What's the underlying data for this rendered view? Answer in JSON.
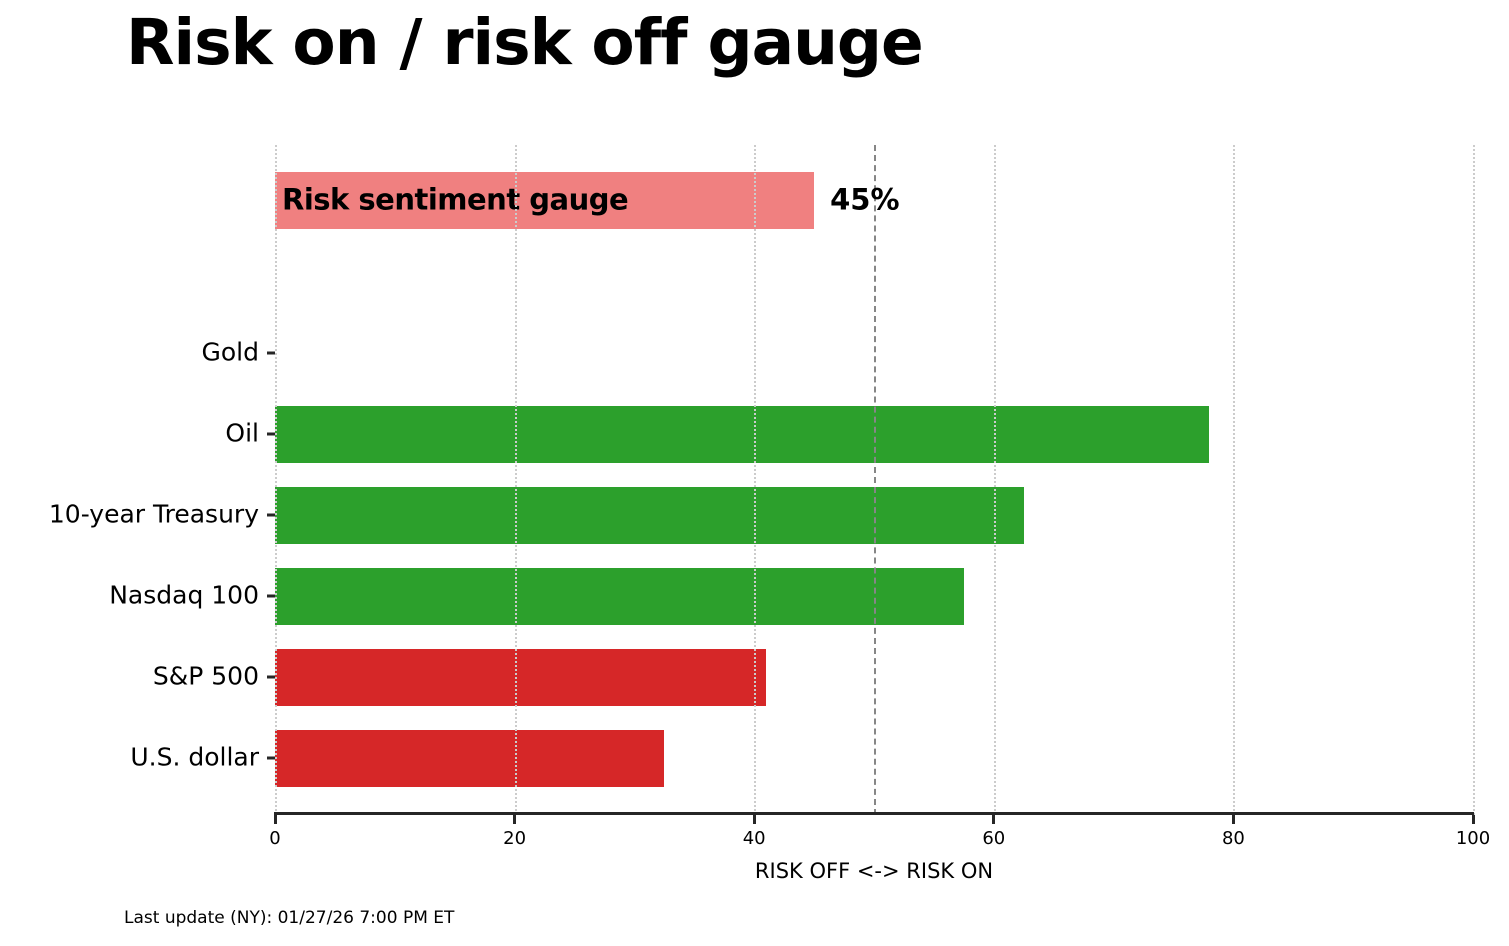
{
  "title": "Risk on / risk off gauge",
  "footer": "Last update (NY): 01/27/26 7:00 PM ET",
  "colors": {
    "risk_on_green": "#2ca02c",
    "risk_off_red": "#d62728",
    "gauge_pink": "#f08080",
    "threshold_gray": "#868686",
    "grid_gray": "#cccccc",
    "axis_dark": "#262626"
  },
  "chart_data": {
    "type": "bar",
    "orientation": "horizontal",
    "title": "Risk on / risk off gauge",
    "xlabel": "RISK OFF <-> RISK ON",
    "xlim": [
      0,
      100
    ],
    "xticks": [
      0,
      20,
      40,
      60,
      80,
      100
    ],
    "grid": "vertical-dotted",
    "legend": "none",
    "threshold_line_x": 50,
    "gauge": {
      "label": "Risk sentiment gauge",
      "value": 45,
      "value_label": "45%",
      "color": "#f08080"
    },
    "categories": [
      "Gold",
      "Oil",
      "10-year Treasury",
      "Nasdaq 100",
      "S&P 500",
      "U.S. dollar"
    ],
    "values": [
      0,
      78,
      62.5,
      57.5,
      41,
      32.5
    ],
    "bar_colors": [
      null,
      "#2ca02c",
      "#2ca02c",
      "#2ca02c",
      "#d62728",
      "#d62728"
    ]
  }
}
